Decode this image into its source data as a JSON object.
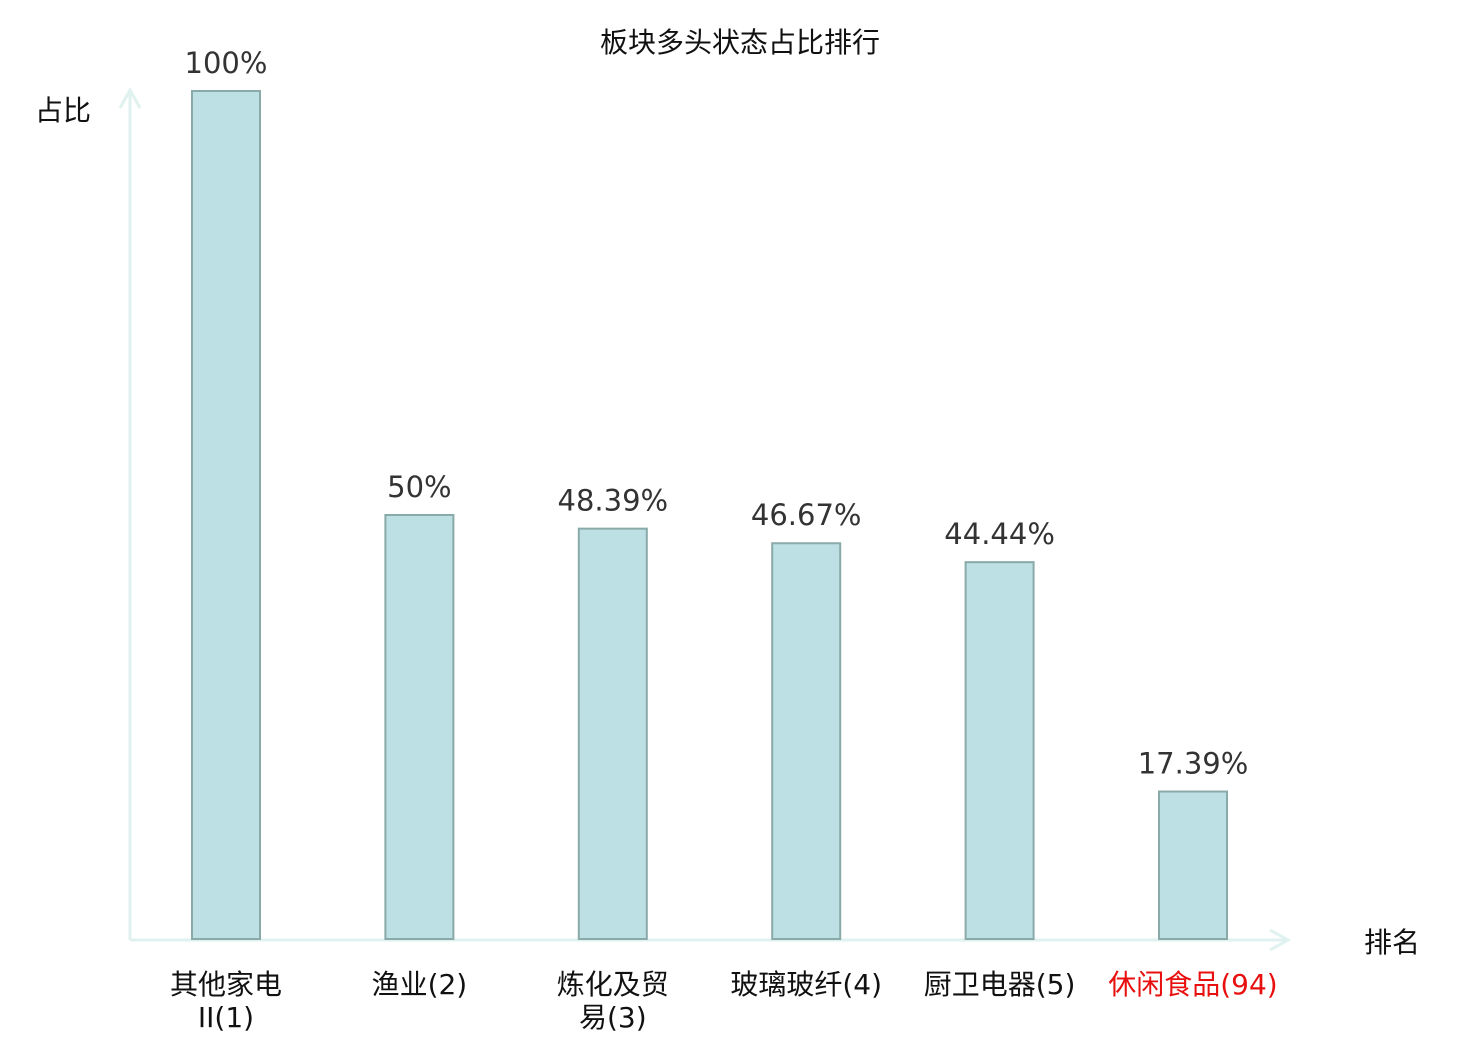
{
  "chart_data": {
    "type": "bar",
    "title": "板块多头状态占比排行",
    "xlabel": "排名",
    "ylabel": "占比",
    "ylim": [
      0,
      100
    ],
    "grid": false,
    "categories": [
      "其他家电II(1)",
      "渔业(2)",
      "炼化及贸易(3)",
      "玻璃玻纤(4)",
      "厨卫电器(5)",
      "休闲食品(94)"
    ],
    "label_lines": [
      [
        "其他家电",
        "II(1)"
      ],
      [
        "渔业(2)"
      ],
      [
        "炼化及贸",
        "易(3)"
      ],
      [
        "玻璃玻纤(4)"
      ],
      [
        "厨卫电器(5)"
      ],
      [
        "休闲食品(94)"
      ]
    ],
    "values": [
      100,
      50,
      48.39,
      46.67,
      44.44,
      17.39
    ],
    "data_labels": [
      "100%",
      "50%",
      "48.39%",
      "46.67%",
      "44.44%",
      "17.39%"
    ],
    "highlight_index": 5,
    "colors": {
      "bar_fill": "#bce0e3",
      "bar_stroke": "#8aa9a9",
      "axis": "#dff2ef",
      "highlight_text": "#e8100f",
      "text": "#222222"
    }
  }
}
